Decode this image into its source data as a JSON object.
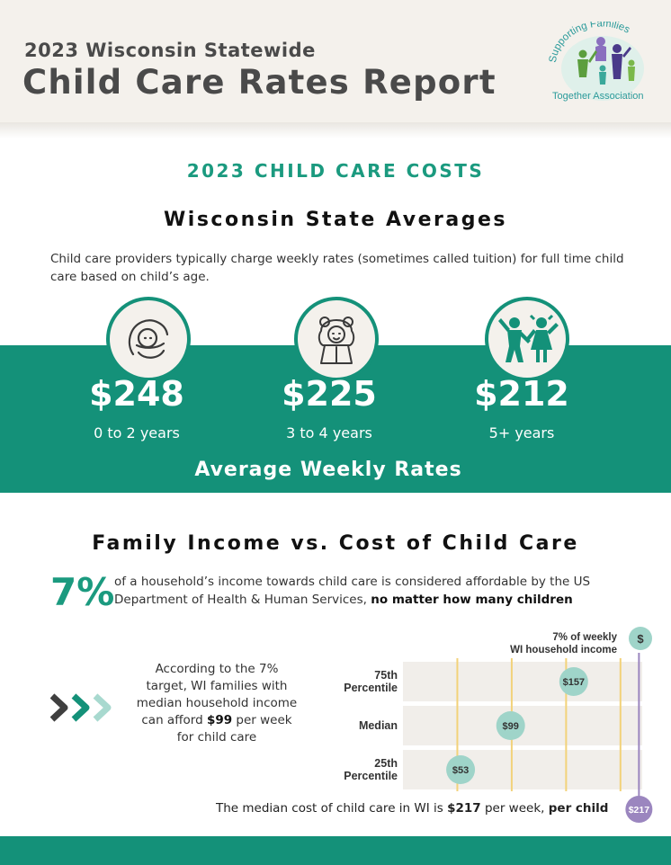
{
  "header": {
    "subtitle": "2023 Wisconsin Statewide",
    "title": "Child Care Rates Report",
    "logo_text_top": "Supporting Families",
    "logo_text_bottom": "Together Association"
  },
  "costs_section": {
    "heading": "2023 CHILD CARE COSTS",
    "subheading": "Wisconsin State Averages",
    "intro": "Child care providers typically charge weekly rates (sometimes called tuition) for full time child care based on child’s age."
  },
  "rates": [
    {
      "icon": "infant-icon",
      "price": "$248",
      "age": "0 to 2 years"
    },
    {
      "icon": "toddler-icon",
      "price": "$225",
      "age": "3 to 4 years"
    },
    {
      "icon": "children-icon",
      "price": "$212",
      "age": "5+ years"
    }
  ],
  "rates_label": "Average Weekly Rates",
  "income_section": {
    "heading": "Family Income vs. Cost of Child Care",
    "percent": "7%",
    "statement_part1": "of a household’s income towards child care is considered affordable by the US Department of Health & Human Services,",
    "statement_bold": "no matter how many children",
    "afford_part1": "According to the 7% target, WI families with median household income can afford",
    "afford_bold": "$99",
    "afford_part2": "per week for child care"
  },
  "chart_data": {
    "type": "dot",
    "title": "",
    "legend_label": "7% of weekly WI household income",
    "legend_icon": "$",
    "categories": [
      "75th Percentile",
      "Median",
      "25th Percentile"
    ],
    "category_lines": [
      [
        "75th",
        "Percentile"
      ],
      [
        "Median"
      ],
      [
        "25th",
        "Percentile"
      ]
    ],
    "values": [
      157,
      99,
      53
    ],
    "value_labels": [
      "$157",
      "$99",
      "$53"
    ],
    "reference_value": 217,
    "reference_label": "$217",
    "xlim": [
      0,
      220
    ],
    "grid": true,
    "colors": {
      "dot": "#9fd4c9",
      "band": "#f1eeea",
      "grid": "#f2d27a",
      "reference": "#9b86bf"
    }
  },
  "bottom_note": {
    "part1": "The median cost of child care in WI is",
    "bold1": "$217",
    "part2": "per week,",
    "bold2": "per child"
  },
  "colors": {
    "teal": "#149179",
    "cream": "#f4f1ec",
    "text": "#4a4a4a"
  }
}
